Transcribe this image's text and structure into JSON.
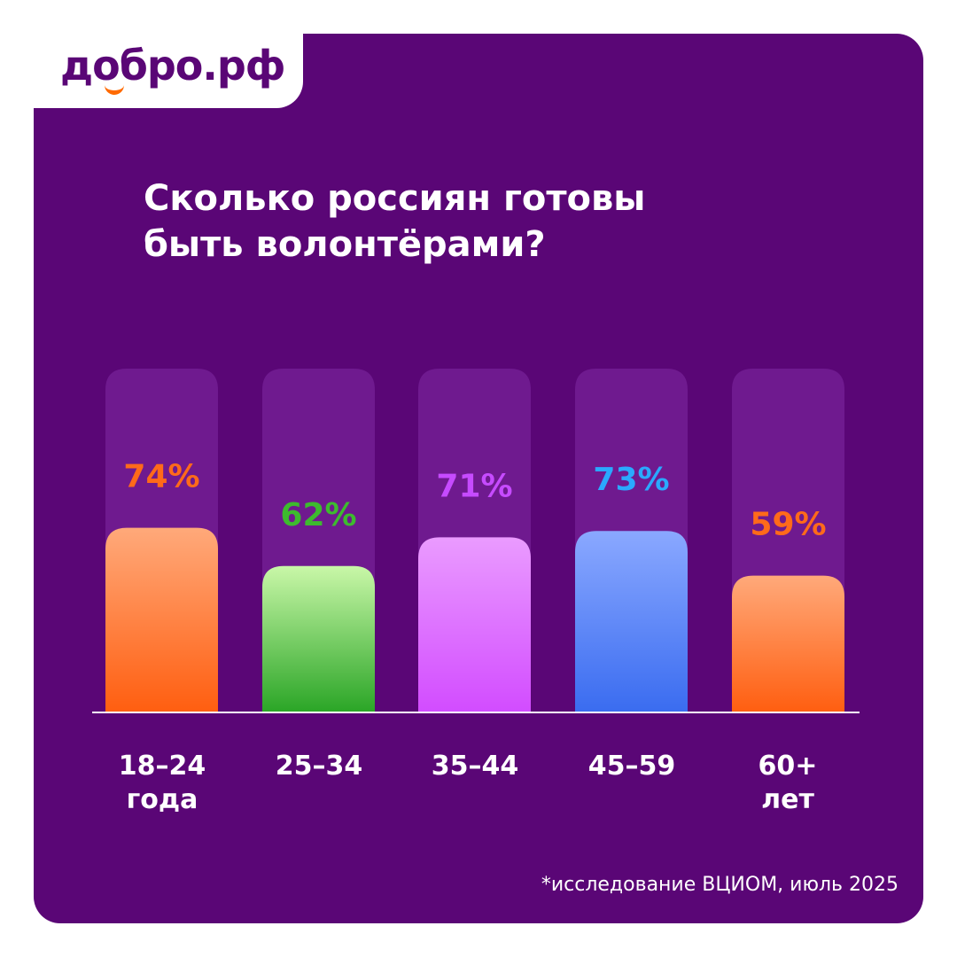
{
  "logo": {
    "text": "добро.рф",
    "icon": "smile-icon"
  },
  "chart_data": {
    "type": "bar",
    "title_lines": [
      "Сколько россиян готовы",
      "быть волонтёрами?"
    ],
    "categories": [
      {
        "line1": "18–24",
        "line2": "года"
      },
      {
        "line1": "25–34",
        "line2": ""
      },
      {
        "line1": "35–44",
        "line2": ""
      },
      {
        "line1": "45–59",
        "line2": ""
      },
      {
        "line1": "60+",
        "line2": "лет"
      }
    ],
    "values": [
      74,
      62,
      71,
      73,
      59
    ],
    "value_labels": [
      "74%",
      "62%",
      "71%",
      "73%",
      "59%"
    ],
    "unit": "%",
    "ylim": [
      0,
      100
    ],
    "label_colors": [
      "#ff6a1a",
      "#3dbb2e",
      "#c64bff",
      "#2aa9ff",
      "#ff6a1a"
    ],
    "bar_gradients": [
      [
        "#ffa97a",
        "#ff5e10"
      ],
      [
        "#c9f7a8",
        "#2aa526"
      ],
      [
        "#ea9bff",
        "#d24cff"
      ],
      [
        "#8aa8ff",
        "#3a6cf0"
      ],
      [
        "#ffa97a",
        "#ff5e10"
      ]
    ],
    "track_color": "#6f1a8f",
    "grid": false
  },
  "footnote": "*исследование ВЦИОМ, июль 2025"
}
